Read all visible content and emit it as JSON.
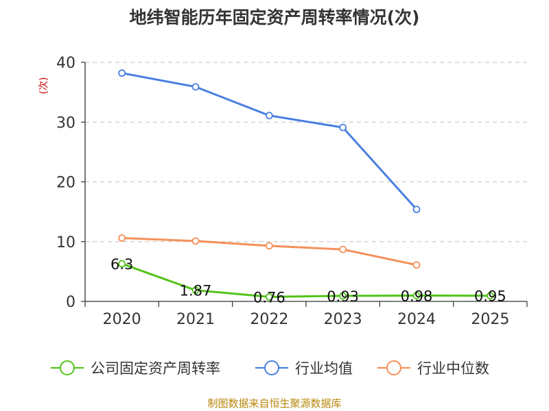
{
  "chart_data": {
    "type": "line",
    "title": "地纬智能历年固定资产周转率情况(次)",
    "ylabel": "(次)",
    "xlabel": "",
    "ylim": [
      0,
      40
    ],
    "yticks": [
      0,
      10,
      20,
      30,
      40
    ],
    "categories": [
      "2020",
      "2021",
      "2022",
      "2023",
      "2024",
      "2025"
    ],
    "series": [
      {
        "name": "公司固定资产周转率",
        "color": "#52c41a",
        "values": [
          6.3,
          1.87,
          0.76,
          0.93,
          0.98,
          0.95
        ],
        "labels": [
          "6.3",
          "1.87",
          "0.76",
          "0.93",
          "0.98",
          "0.95"
        ]
      },
      {
        "name": "行业均值",
        "color": "#4a7fe0",
        "values": [
          38.2,
          35.9,
          31.1,
          29.1,
          15.4,
          null
        ]
      },
      {
        "name": "行业中位数",
        "color": "#f5905a",
        "values": [
          10.6,
          10.1,
          9.3,
          8.7,
          6.1,
          null
        ]
      }
    ],
    "grid": true,
    "legend_position": "bottom"
  },
  "source": "制图数据来自恒生聚源数据库"
}
